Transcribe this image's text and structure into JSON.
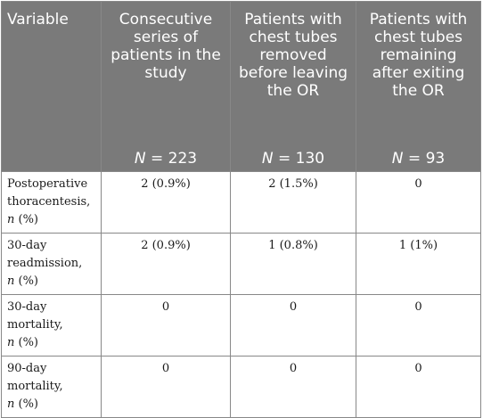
{
  "table": {
    "headers": [
      {
        "label": "Variable",
        "n_label": "",
        "n_value": ""
      },
      {
        "label": "Consecutive series of patients in the study",
        "n_label": "N",
        "n_value": " = 223"
      },
      {
        "label": "Patients with chest tubes removed before leaving the OR",
        "n_label": "N",
        "n_value": " = 130"
      },
      {
        "label": "Patients with chest tubes remaining after exiting the OR",
        "n_label": "N",
        "n_value": " = 93"
      }
    ],
    "rows": [
      {
        "variable_line1": "Postoperative",
        "variable_line2": "thoracentesis,",
        "n_symbol": "n",
        "unit": " (%)",
        "values": [
          "2 (0.9%)",
          "2 (1.5%)",
          "0"
        ]
      },
      {
        "variable_line1": "30-day",
        "variable_line2": "readmission,",
        "n_symbol": "n",
        "unit": " (%)",
        "values": [
          "2 (0.9%)",
          "1 (0.8%)",
          "1 (1%)"
        ]
      },
      {
        "variable_line1": "30-day",
        "variable_line2": "mortality,",
        "n_symbol": "n",
        "unit": " (%)",
        "values": [
          "0",
          "0",
          "0"
        ]
      },
      {
        "variable_line1": "90-day",
        "variable_line2": "mortality,",
        "n_symbol": "n",
        "unit": " (%)",
        "values": [
          "0",
          "0",
          "0"
        ]
      }
    ]
  }
}
